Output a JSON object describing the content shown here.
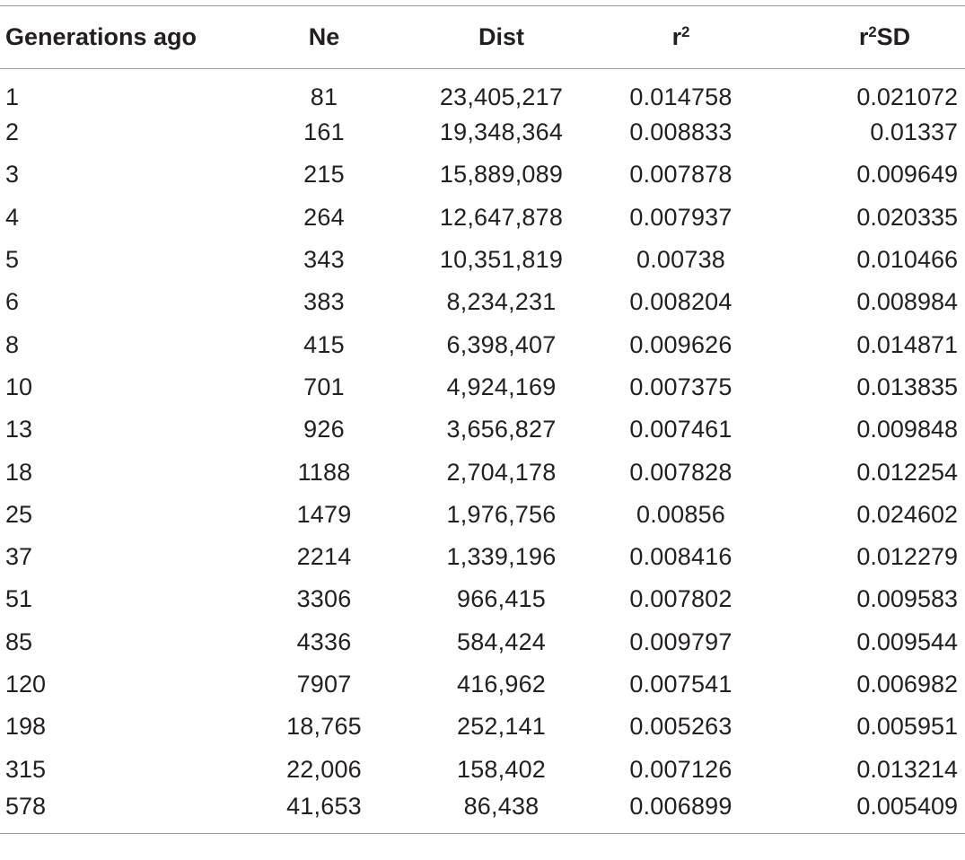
{
  "table": {
    "headers": {
      "generations": "Generations ago",
      "ne": "Ne",
      "dist": "Dist",
      "r2_base": "r",
      "r2_sup": "2",
      "r2sd_base": "r",
      "r2sd_sup": "2",
      "r2sd_suffix": "SD"
    },
    "rows": [
      [
        "1",
        "81",
        "23,405,217",
        "0.014758",
        "0.021072"
      ],
      [
        "2",
        "161",
        "19,348,364",
        "0.008833",
        "0.01337"
      ],
      [
        "3",
        "215",
        "15,889,089",
        "0.007878",
        "0.009649"
      ],
      [
        "4",
        "264",
        "12,647,878",
        "0.007937",
        "0.020335"
      ],
      [
        "5",
        "343",
        "10,351,819",
        "0.00738",
        "0.010466"
      ],
      [
        "6",
        "383",
        "8,234,231",
        "0.008204",
        "0.008984"
      ],
      [
        "8",
        "415",
        "6,398,407",
        "0.009626",
        "0.014871"
      ],
      [
        "10",
        "701",
        "4,924,169",
        "0.007375",
        "0.013835"
      ],
      [
        "13",
        "926",
        "3,656,827",
        "0.007461",
        "0.009848"
      ],
      [
        "18",
        "1188",
        "2,704,178",
        "0.007828",
        "0.012254"
      ],
      [
        "25",
        "1479",
        "1,976,756",
        "0.00856",
        "0.024602"
      ],
      [
        "37",
        "2214",
        "1,339,196",
        "0.008416",
        "0.012279"
      ],
      [
        "51",
        "3306",
        "966,415",
        "0.007802",
        "0.009583"
      ],
      [
        "85",
        "4336",
        "584,424",
        "0.009797",
        "0.009544"
      ],
      [
        "120",
        "7907",
        "416,962",
        "0.007541",
        "0.006982"
      ],
      [
        "198",
        "18,765",
        "252,141",
        "0.005263",
        "0.005951"
      ],
      [
        "315",
        "22,006",
        "158,402",
        "0.007126",
        "0.013214"
      ],
      [
        "578",
        "41,653",
        "86,438",
        "0.006899",
        "0.005409"
      ]
    ]
  }
}
